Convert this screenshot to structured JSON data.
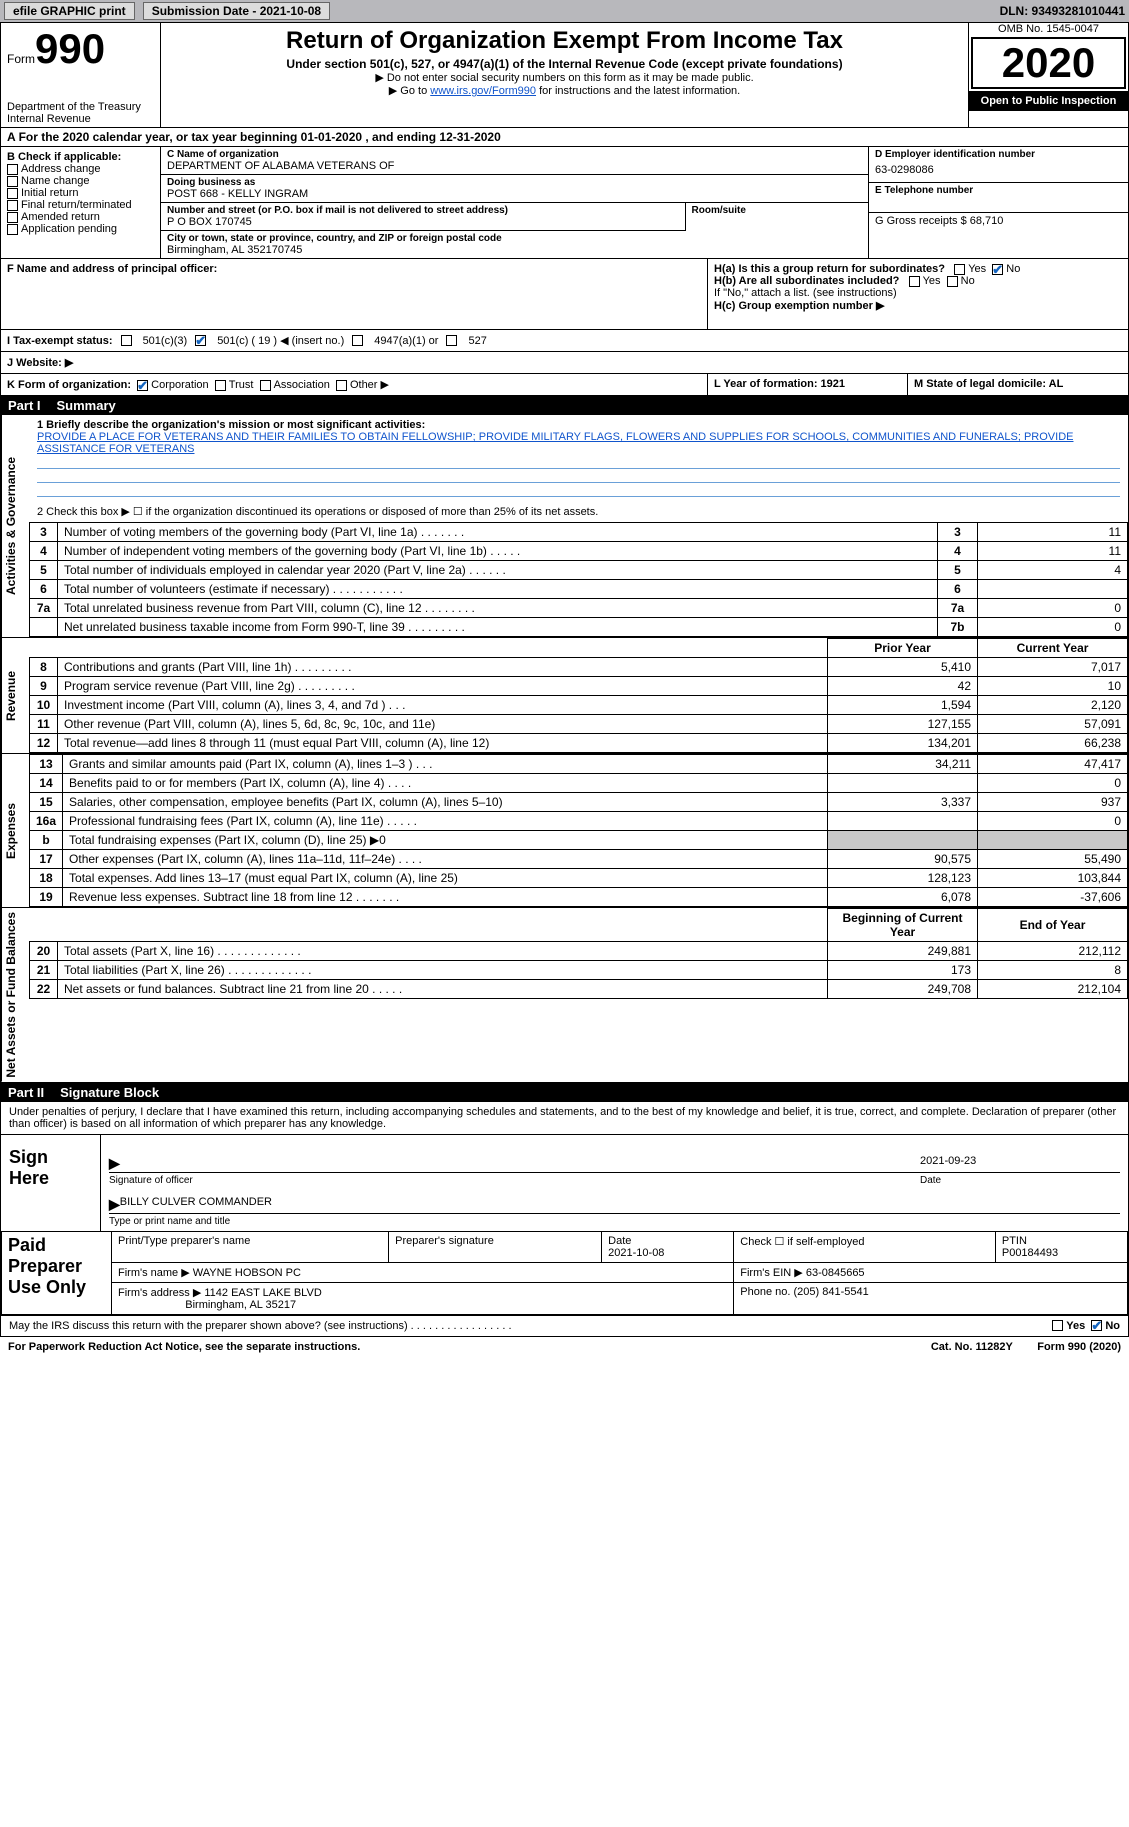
{
  "topbar": {
    "efile": "efile GRAPHIC print",
    "submission": "Submission Date - 2021-10-08",
    "dln": "DLN: 93493281010441"
  },
  "header": {
    "form_prefix": "Form",
    "form_number": "990",
    "dept": "Department of the Treasury\nInternal Revenue",
    "title": "Return of Organization Exempt From Income Tax",
    "sub": "Under section 501(c), 527, or 4947(a)(1) of the Internal Revenue Code (except private foundations)",
    "note1": "▶ Do not enter social security numbers on this form as it may be made public.",
    "note2_pre": "▶ Go to ",
    "note2_link": "www.irs.gov/Form990",
    "note2_post": " for instructions and the latest information.",
    "omb": "OMB No. 1545-0047",
    "year": "2020",
    "open": "Open to Public Inspection"
  },
  "cal": "For the 2020 calendar year, or tax year beginning 01-01-2020   , and ending 12-31-2020",
  "sectionB": {
    "hdr": "B Check if applicable:",
    "opts": [
      "Address change",
      "Name change",
      "Initial return",
      "Final return/terminated",
      "Amended return",
      "Application pending"
    ]
  },
  "sectionC": {
    "name_lab": "C Name of organization",
    "name": "DEPARTMENT OF ALABAMA VETERANS OF",
    "dba_lab": "Doing business as",
    "dba": "POST 668 - KELLY INGRAM",
    "street_lab": "Number and street (or P.O. box if mail is not delivered to street address)",
    "room_lab": "Room/suite",
    "street": "P O BOX 170745",
    "city_lab": "City or town, state or province, country, and ZIP or foreign postal code",
    "city": "Birmingham, AL  352170745"
  },
  "sectionD": {
    "ein_lab": "D Employer identification number",
    "ein": "63-0298086",
    "tel_lab": "E Telephone number",
    "gross_lab": "G Gross receipts $ 68,710"
  },
  "sectionF": {
    "lab": "F  Name and address of principal officer:"
  },
  "sectionH": {
    "ha": "H(a)  Is this a group return for subordinates?",
    "hb": "H(b)  Are all subordinates included?",
    "hb_note": "If \"No,\" attach a list. (see instructions)",
    "hc": "H(c)  Group exemption number ▶",
    "yes": "Yes",
    "no": "No"
  },
  "sectionI": {
    "lab": "I   Tax-exempt status:",
    "o1": "501(c)(3)",
    "o2": "501(c) ( 19 ) ◀ (insert no.)",
    "o3": "4947(a)(1) or",
    "o4": "527"
  },
  "sectionJ": {
    "lab": "J   Website: ▶"
  },
  "sectionK": {
    "lab": "K Form of organization:",
    "opts": [
      "Corporation",
      "Trust",
      "Association",
      "Other ▶"
    ],
    "l": "L Year of formation: 1921",
    "m": "M State of legal domicile: AL"
  },
  "part1": {
    "tag": "Part I",
    "title": "Summary",
    "l1_lab": "1  Briefly describe the organization's mission or most significant activities:",
    "mission": "PROVIDE A PLACE FOR VETERANS AND THEIR FAMILIES TO OBTAIN FELLOWSHIP; PROVIDE MILITARY FLAGS, FLOWERS AND SUPPLIES FOR SCHOOLS, COMMUNITIES AND FUNERALS; PROVIDE ASSISTANCE FOR VETERANS",
    "l2": "2   Check this box ▶ ☐  if the organization discontinued its operations or disposed of more than 25% of its net assets.",
    "vert": {
      "gov": "Activities & Governance",
      "rev": "Revenue",
      "exp": "Expenses",
      "net": "Net Assets or Fund Balances"
    },
    "gov_rows": [
      {
        "n": "3",
        "d": "Number of voting members of the governing body (Part VI, line 1a)   .    .    .    .    .    .    .",
        "b": "3",
        "v": "11"
      },
      {
        "n": "4",
        "d": "Number of independent voting members of the governing body (Part VI, line 1b)   .    .    .    .    .",
        "b": "4",
        "v": "11"
      },
      {
        "n": "5",
        "d": "Total number of individuals employed in calendar year 2020 (Part V, line 2a)   .    .    .    .    .    .",
        "b": "5",
        "v": "4"
      },
      {
        "n": "6",
        "d": "Total number of volunteers (estimate if necessary)   .    .    .    .    .    .    .    .    .    .    .",
        "b": "6",
        "v": ""
      },
      {
        "n": "7a",
        "d": "Total unrelated business revenue from Part VIII, column (C), line 12   .    .    .    .    .    .    .    .",
        "b": "7a",
        "v": "0"
      },
      {
        "n": "",
        "d": "Net unrelated business taxable income from Form 990-T, line 39   .    .    .    .    .    .    .    .    .",
        "b": "7b",
        "v": "0"
      }
    ],
    "col_prior": "Prior Year",
    "col_current": "Current Year",
    "rev_rows": [
      {
        "n": "8",
        "d": "Contributions and grants (Part VIII, line 1h)   .    .    .    .    .    .    .    .    .",
        "p": "5,410",
        "c": "7,017"
      },
      {
        "n": "9",
        "d": "Program service revenue (Part VIII, line 2g)   .    .    .    .    .    .    .    .    .",
        "p": "42",
        "c": "10"
      },
      {
        "n": "10",
        "d": "Investment income (Part VIII, column (A), lines 3, 4, and 7d )   .    .    .",
        "p": "1,594",
        "c": "2,120"
      },
      {
        "n": "11",
        "d": "Other revenue (Part VIII, column (A), lines 5, 6d, 8c, 9c, 10c, and 11e)",
        "p": "127,155",
        "c": "57,091"
      },
      {
        "n": "12",
        "d": "Total revenue—add lines 8 through 11 (must equal Part VIII, column (A), line 12)",
        "p": "134,201",
        "c": "66,238"
      }
    ],
    "exp_rows": [
      {
        "n": "13",
        "d": "Grants and similar amounts paid (Part IX, column (A), lines 1–3 )   .    .    .",
        "p": "34,211",
        "c": "47,417"
      },
      {
        "n": "14",
        "d": "Benefits paid to or for members (Part IX, column (A), line 4)   .    .    .    .",
        "p": "",
        "c": "0"
      },
      {
        "n": "15",
        "d": "Salaries, other compensation, employee benefits (Part IX, column (A), lines 5–10)",
        "p": "3,337",
        "c": "937"
      },
      {
        "n": "16a",
        "d": "Professional fundraising fees (Part IX, column (A), line 11e)   .    .    .    .    .",
        "p": "",
        "c": "0"
      },
      {
        "n": "b",
        "d": "Total fundraising expenses (Part IX, column (D), line 25) ▶0",
        "p": "",
        "c": "",
        "shade": true
      },
      {
        "n": "17",
        "d": "Other expenses (Part IX, column (A), lines 11a–11d, 11f–24e)   .    .    .    .",
        "p": "90,575",
        "c": "55,490"
      },
      {
        "n": "18",
        "d": "Total expenses. Add lines 13–17 (must equal Part IX, column (A), line 25)",
        "p": "128,123",
        "c": "103,844"
      },
      {
        "n": "19",
        "d": "Revenue less expenses. Subtract line 18 from line 12   .    .    .    .    .    .    .",
        "p": "6,078",
        "c": "-37,606"
      }
    ],
    "col_begin": "Beginning of Current Year",
    "col_end": "End of Year",
    "net_rows": [
      {
        "n": "20",
        "d": "Total assets (Part X, line 16)   .    .    .    .    .    .    .    .    .    .    .    .    .",
        "p": "249,881",
        "c": "212,112"
      },
      {
        "n": "21",
        "d": "Total liabilities (Part X, line 26)   .    .    .    .    .    .    .    .    .    .    .    .    .",
        "p": "173",
        "c": "8"
      },
      {
        "n": "22",
        "d": "Net assets or fund balances. Subtract line 21 from line 20   .    .    .    .    .",
        "p": "249,708",
        "c": "212,104"
      }
    ]
  },
  "part2": {
    "tag": "Part II",
    "title": "Signature Block",
    "decl": "Under penalties of perjury, I declare that I have examined this return, including accompanying schedules and statements, and to the best of my knowledge and belief, it is true, correct, and complete. Declaration of preparer (other than officer) is based on all information of which preparer has any knowledge.",
    "sign_here": "Sign Here",
    "sig_officer": "Signature of officer",
    "sig_date": "2021-09-23",
    "date_lab": "Date",
    "officer_name": "BILLY CULVER  COMMANDER",
    "name_lab": "Type or print name and title",
    "paid": "Paid Preparer Use Only",
    "h_print": "Print/Type preparer's name",
    "h_sig": "Preparer's signature",
    "h_date": "Date",
    "h_date_val": "2021-10-08",
    "h_check": "Check ☐ if self-employed",
    "h_ptin": "PTIN",
    "ptin": "P00184493",
    "firm_lab": "Firm's name    ▶",
    "firm": "WAYNE HOBSON PC",
    "firm_ein_lab": "Firm's EIN ▶",
    "firm_ein": "63-0845665",
    "addr_lab": "Firm's address ▶",
    "addr1": "1142 EAST LAKE BLVD",
    "addr2": "Birmingham, AL  35217",
    "phone_lab": "Phone no.",
    "phone": "(205) 841-5541",
    "discuss": "May the IRS discuss this return with the preparer shown above? (see instructions)   .    .    .    .    .    .    .    .    .    .    .    .    .    .    .    .    ."
  },
  "footer": {
    "left": "For Paperwork Reduction Act Notice, see the separate instructions.",
    "mid": "Cat. No. 11282Y",
    "right": "Form 990 (2020)"
  },
  "colors": {
    "topbar_bg": "#b8b8bc",
    "link": "#1155cc",
    "check": "#1565c0",
    "line": "#6aa0d8",
    "shade": "#c8c8c8"
  }
}
